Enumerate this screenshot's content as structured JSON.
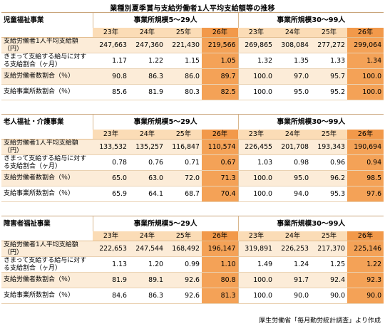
{
  "title": "業種別夏季賞与支給労働者1人平均支給額等の推移",
  "group_headers": [
    "事業所規模5～29人",
    "事業所規模30～99人"
  ],
  "years": [
    "23年",
    "24年",
    "25年",
    "26年"
  ],
  "row_labels": [
    "支給労働者1人平均支給額（円）",
    "きまって支給する給与に対する支給割合（ヶ月）",
    "支給労働者数割合（％）",
    "支給事業所数割合（％）"
  ],
  "sections": [
    {
      "name": "児童福祉事業",
      "rows": [
        {
          "small": [
            "247,663",
            "247,360",
            "221,430",
            "219,566"
          ],
          "large": [
            "269,865",
            "308,084",
            "277,272",
            "299,064"
          ]
        },
        {
          "small": [
            "1.17",
            "1.22",
            "1.15",
            "1.05"
          ],
          "large": [
            "1.32",
            "1.35",
            "1.33",
            "1.34"
          ]
        },
        {
          "small": [
            "90.8",
            "86.3",
            "86.0",
            "89.7"
          ],
          "large": [
            "100.0",
            "97.0",
            "95.7",
            "100.0"
          ]
        },
        {
          "small": [
            "85.6",
            "81.9",
            "80.3",
            "82.5"
          ],
          "large": [
            "100.0",
            "95.0",
            "95.2",
            "100.0"
          ]
        }
      ]
    },
    {
      "name": "老人福祉・介護事業",
      "rows": [
        {
          "small": [
            "133,532",
            "135,257",
            "116,847",
            "110,574"
          ],
          "large": [
            "226,455",
            "201,708",
            "193,343",
            "190,694"
          ]
        },
        {
          "small": [
            "0.78",
            "0.76",
            "0.71",
            "0.67"
          ],
          "large": [
            "1.03",
            "0.98",
            "0.96",
            "0.94"
          ]
        },
        {
          "small": [
            "65.0",
            "63.0",
            "72.0",
            "71.3"
          ],
          "large": [
            "100.0",
            "95.0",
            "96.2",
            "98.5"
          ]
        },
        {
          "small": [
            "65.9",
            "64.1",
            "68.7",
            "70.4"
          ],
          "large": [
            "100.0",
            "94.0",
            "95.3",
            "97.6"
          ]
        }
      ]
    },
    {
      "name": "障害者福祉事業",
      "rows": [
        {
          "small": [
            "222,653",
            "247,544",
            "168,492",
            "196,147"
          ],
          "large": [
            "319,891",
            "226,253",
            "217,370",
            "225,146"
          ]
        },
        {
          "small": [
            "1.13",
            "1.20",
            "0.99",
            "1.10"
          ],
          "large": [
            "1.49",
            "1.24",
            "1.25",
            "1.22"
          ]
        },
        {
          "small": [
            "81.9",
            "89.1",
            "92.6",
            "80.8"
          ],
          "large": [
            "100.0",
            "91.7",
            "92.4",
            "92.3"
          ]
        },
        {
          "small": [
            "84.6",
            "86.3",
            "92.6",
            "81.3"
          ],
          "large": [
            "100.0",
            "90.0",
            "90.0",
            "90.0"
          ]
        }
      ]
    }
  ],
  "source": "厚生労働省「毎月勤労統計調査」より作成",
  "colors": {
    "highlight": "#f4a257",
    "header_band": "#fbdcb6",
    "row_band": "#fcecd8"
  }
}
